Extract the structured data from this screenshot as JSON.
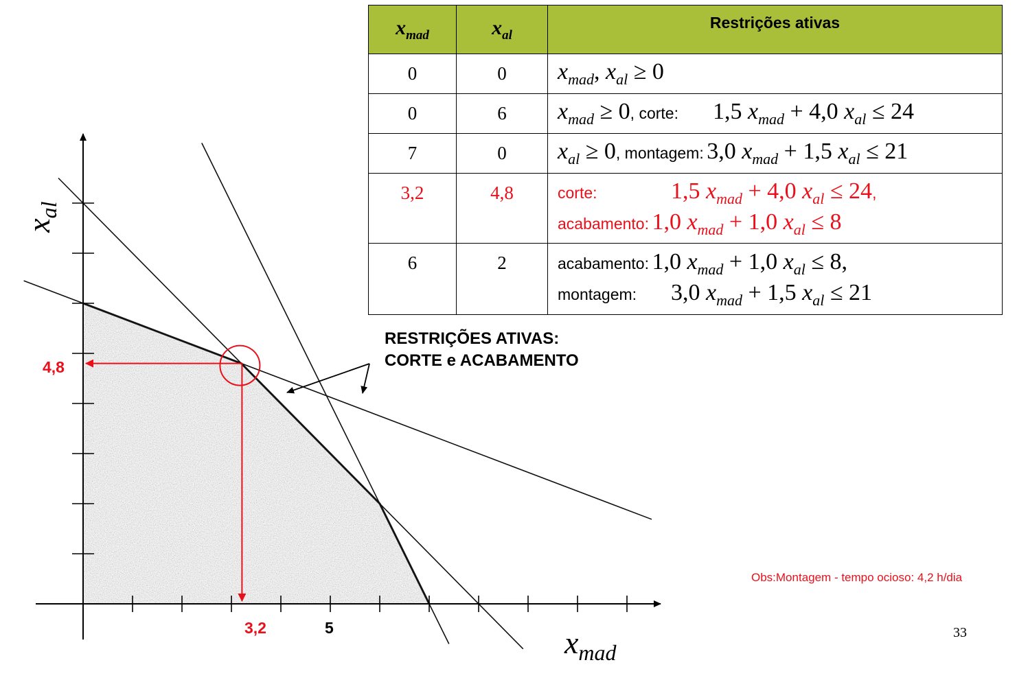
{
  "table": {
    "headers": {
      "xmad": "x",
      "xmad_sub": "mad",
      "xal": "x",
      "xal_sub": "al",
      "restricoes": "Restrições ativas"
    },
    "rows": [
      {
        "xmad": "0",
        "xal": "0",
        "expr": "x_mad, x_al ≥ 0"
      },
      {
        "xmad": "0",
        "xal": "6",
        "label": "corte:",
        "expr": "x_mad ≥ 0, corte: 1,5 x_mad + 4,0 x_al ≤ 24"
      },
      {
        "xmad": "7",
        "xal": "0",
        "label": "montagem:",
        "expr": "x_al ≥ 0, montagem: 3,0 x_mad + 1,5 x_al ≤ 21"
      },
      {
        "xmad": "3,2",
        "xal": "4,8",
        "label1": "corte:",
        "label2": "acabamento:",
        "expr1": "1,5 x_mad + 4,0 x_al ≤ 24,",
        "expr2": "1,0 x_mad + 1,0 x_al ≤ 8",
        "highlight": "#e8101a"
      },
      {
        "xmad": "6",
        "xal": "2",
        "label1": "acabamento:",
        "label2": "montagem:",
        "expr1": "1,0 x_mad + 1,0 x_al ≤ 8,",
        "expr2": "3,0 x_mad + 1,5 x_al ≤ 21"
      }
    ]
  },
  "annotation": {
    "line1": "RESTRIÇÕES ATIVAS:",
    "line2": "CORTE e ACABAMENTO"
  },
  "obs": "Obs:Montagem - tempo ocioso: 4,2 h/dia",
  "page_number": "33",
  "graph": {
    "x_axis_label": "x",
    "x_axis_sub": "mad",
    "y_axis_label": "x",
    "y_axis_sub": "al",
    "tick_x_label": "5",
    "optimum_x_label": "3,2",
    "optimum_y_label": "4,8",
    "optimum": {
      "x": 3.2,
      "y": 4.8
    },
    "constraints": [
      {
        "name": "corte",
        "a": 1.5,
        "b": 4.0,
        "rhs": 24
      },
      {
        "name": "acabamento",
        "a": 1.0,
        "b": 1.0,
        "rhs": 8
      },
      {
        "name": "montagem",
        "a": 3.0,
        "b": 1.5,
        "rhs": 21
      }
    ],
    "feasible_vertices": [
      [
        0,
        0
      ],
      [
        0,
        6
      ],
      [
        3.2,
        4.8
      ],
      [
        6,
        2
      ],
      [
        7,
        0
      ]
    ],
    "highlight_color": "#e8101a"
  }
}
